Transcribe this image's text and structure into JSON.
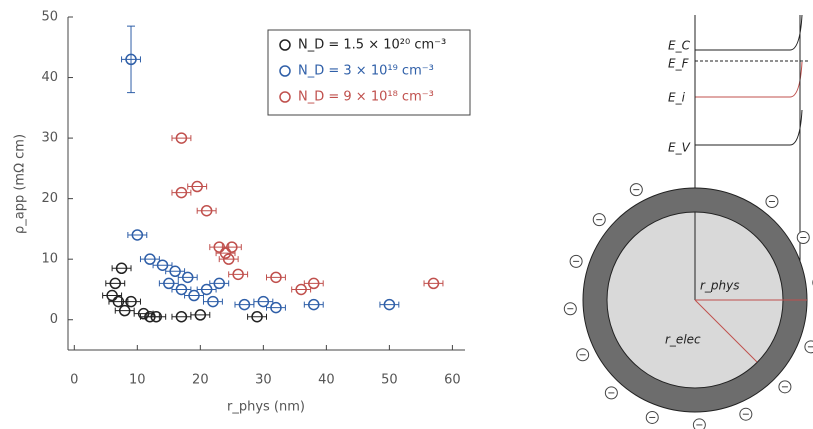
{
  "chart_data": {
    "type": "scatter",
    "xlabel": "r_phys (nm)",
    "ylabel": "ρ_app (mΩ cm)",
    "xlim": [
      -1,
      62
    ],
    "ylim": [
      -5,
      50
    ],
    "xticks": [
      0,
      10,
      20,
      30,
      40,
      50,
      60
    ],
    "yticks": [
      0,
      10,
      20,
      30,
      40,
      50
    ],
    "legend": "upper right",
    "series": [
      {
        "name": "N_D = 1.5 × 10²⁰ cm⁻³",
        "color": "#222222",
        "xerr": 1.5,
        "x": [
          6,
          6.5,
          7,
          7.5,
          8,
          9,
          11,
          12,
          13,
          17,
          20,
          29
        ],
        "y": [
          4,
          6,
          3,
          8.5,
          1.5,
          3,
          1,
          0.5,
          0.5,
          0.5,
          0.8,
          0.5
        ]
      },
      {
        "name": "N_D = 3 × 10¹⁹ cm⁻³",
        "color": "#2f5fa8",
        "xerr": 1.5,
        "x": [
          9,
          10,
          12,
          14,
          15,
          16,
          17,
          18,
          19,
          21,
          22,
          23,
          27,
          30,
          32,
          38,
          50
        ],
        "y": [
          43,
          14,
          10,
          9,
          6,
          8,
          5,
          7,
          4,
          5,
          3,
          6,
          2.5,
          3,
          2,
          2.5,
          2.5
        ],
        "yerr": [
          5.5,
          null,
          null,
          null,
          null,
          null,
          null,
          null,
          null,
          null,
          null,
          null,
          null,
          null,
          null,
          null,
          null
        ]
      },
      {
        "name": "N_D = 9 × 10¹⁸ cm⁻³",
        "color": "#c0504d",
        "xerr": 1.5,
        "x": [
          17,
          17,
          19.5,
          21,
          23,
          24,
          25,
          24.5,
          26,
          32,
          36,
          38,
          57
        ],
        "y": [
          30,
          21,
          22,
          18,
          12,
          11,
          12,
          10,
          7.5,
          7,
          5,
          6,
          6
        ]
      }
    ]
  },
  "diagram": {
    "ec": "E_C",
    "ef": "E_F",
    "ei": "E_i",
    "ev": "E_V",
    "r_phys": "r_phys",
    "r_elec": "r_elec"
  }
}
